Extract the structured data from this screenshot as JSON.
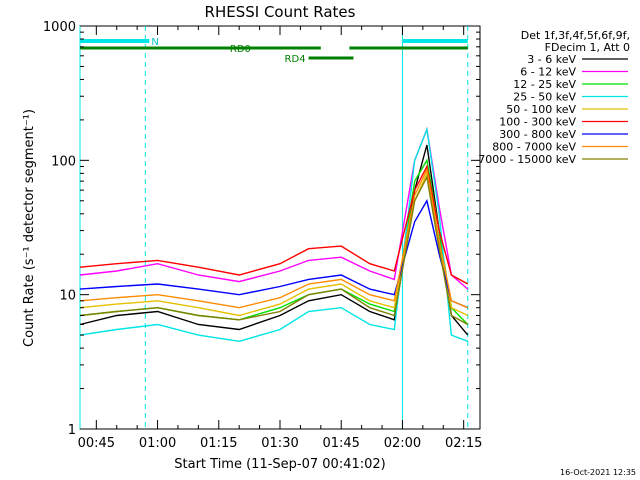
{
  "chart_data": {
    "type": "line",
    "title": "RHESSI Count Rates",
    "xlabel": "Start Time (11-Sep-07 00:41:02)",
    "ylabel": "Count Rate (s⁻¹ detector segment⁻¹)",
    "y_scale": "log",
    "ylim": [
      1,
      1000
    ],
    "y_ticks": [
      1,
      10,
      100,
      1000
    ],
    "y_tick_labels": [
      "1",
      "10",
      "100",
      "1000"
    ],
    "xlim": [
      "00:41",
      "02:19"
    ],
    "x_ticks": [
      "00:45",
      "01:00",
      "01:15",
      "01:30",
      "01:45",
      "02:00",
      "02:15"
    ],
    "grid": false,
    "legend_position": "right",
    "legend_header": [
      "Det 1f,3f,4f,5f,6f,9f,",
      "FDecim 1, Att 0"
    ],
    "footer_date": "16-Oct-2021 12:35",
    "markers": {
      "solid_vertical_lines_at": [
        "00:41",
        "02:00"
      ],
      "dashed_vertical_lines_at": [
        "00:57",
        "02:16"
      ],
      "night_bars": [
        {
          "label": "N",
          "start": "00:41",
          "end": "00:58"
        },
        {
          "label": "",
          "start": "02:00",
          "end": "02:16"
        }
      ],
      "decimation_bars": [
        {
          "label": "RD0",
          "start": "00:41",
          "end": "01:40"
        },
        {
          "label": "",
          "start": "01:47",
          "end": "02:16"
        },
        {
          "label": "RD4",
          "start": "01:37",
          "end": "01:48"
        }
      ]
    },
    "series": [
      {
        "name": "3 - 6 keV",
        "color": "#000000",
        "x": [
          "00:41",
          "00:50",
          "01:00",
          "01:10",
          "01:20",
          "01:30",
          "01:37",
          "01:45",
          "01:52",
          "01:58",
          "02:03",
          "02:06",
          "02:09",
          "02:12",
          "02:16"
        ],
        "values": [
          6,
          7,
          7.5,
          6,
          5.5,
          7,
          9,
          10,
          7.5,
          6.5,
          60,
          130,
          30,
          7,
          5
        ]
      },
      {
        "name": "6 - 12 keV",
        "color": "#ff00ff",
        "x": [
          "00:41",
          "00:50",
          "01:00",
          "01:10",
          "01:20",
          "01:30",
          "01:37",
          "01:45",
          "01:52",
          "01:58",
          "02:03",
          "02:06",
          "02:09",
          "02:12",
          "02:16"
        ],
        "values": [
          14,
          15,
          17,
          14,
          12.5,
          15,
          18,
          19,
          15,
          13,
          100,
          170,
          45,
          14,
          11
        ]
      },
      {
        "name": "12 - 25 keV",
        "color": "#00e000",
        "x": [
          "00:41",
          "00:50",
          "01:00",
          "01:10",
          "01:20",
          "01:30",
          "01:37",
          "01:45",
          "01:52",
          "01:58",
          "02:03",
          "02:06",
          "02:09",
          "02:12",
          "02:16"
        ],
        "values": [
          7,
          7.5,
          8,
          7,
          6.5,
          8,
          10,
          11,
          8.5,
          7.5,
          70,
          100,
          30,
          8,
          6
        ]
      },
      {
        "name": "25 - 50 keV",
        "color": "#00e5e5",
        "x": [
          "00:41",
          "00:50",
          "01:00",
          "01:10",
          "01:20",
          "01:30",
          "01:37",
          "01:45",
          "01:52",
          "01:58",
          "02:03",
          "02:06",
          "02:09",
          "02:12",
          "02:16"
        ],
        "values": [
          5,
          5.5,
          6,
          5,
          4.5,
          5.5,
          7.5,
          8,
          6,
          5.5,
          100,
          170,
          40,
          5,
          4.5
        ]
      },
      {
        "name": "50 - 100 keV",
        "color": "#e5c000",
        "x": [
          "00:41",
          "00:50",
          "01:00",
          "01:10",
          "01:20",
          "01:30",
          "01:37",
          "01:45",
          "01:52",
          "01:58",
          "02:03",
          "02:06",
          "02:09",
          "02:12",
          "02:16"
        ],
        "values": [
          8,
          8.5,
          9,
          8,
          7,
          8.5,
          11,
          12,
          9,
          8,
          50,
          80,
          25,
          8,
          7
        ]
      },
      {
        "name": "100 - 300 keV",
        "color": "#ff0000",
        "x": [
          "00:41",
          "00:50",
          "01:00",
          "01:10",
          "01:20",
          "01:30",
          "01:37",
          "01:45",
          "01:52",
          "01:58",
          "02:03",
          "02:06",
          "02:09",
          "02:12",
          "02:16"
        ],
        "values": [
          16,
          17,
          18,
          16,
          14,
          17,
          22,
          23,
          17,
          15,
          60,
          90,
          30,
          14,
          12
        ]
      },
      {
        "name": "300 - 800 keV",
        "color": "#0000ff",
        "x": [
          "00:41",
          "00:50",
          "01:00",
          "01:10",
          "01:20",
          "01:30",
          "01:37",
          "01:45",
          "01:52",
          "01:58",
          "02:03",
          "02:06",
          "02:09",
          "02:12",
          "02:16"
        ],
        "values": [
          11,
          11.5,
          12,
          11,
          10,
          11.5,
          13,
          14,
          11,
          10,
          35,
          50,
          20,
          9,
          8
        ]
      },
      {
        "name": "800 - 7000 keV",
        "color": "#ff8c00",
        "x": [
          "00:41",
          "00:50",
          "01:00",
          "01:10",
          "01:20",
          "01:30",
          "01:37",
          "01:45",
          "01:52",
          "01:58",
          "02:03",
          "02:06",
          "02:09",
          "02:12",
          "02:16"
        ],
        "values": [
          9,
          9.5,
          10,
          9,
          8,
          9.5,
          12,
          13,
          10,
          9,
          55,
          85,
          25,
          9,
          8
        ]
      },
      {
        "name": "7000 - 15000 keV",
        "color": "#808000",
        "x": [
          "00:41",
          "00:50",
          "01:00",
          "01:10",
          "01:20",
          "01:30",
          "01:37",
          "01:45",
          "01:52",
          "01:58",
          "02:03",
          "02:06",
          "02:09",
          "02:12",
          "02:16"
        ],
        "values": [
          7,
          7.5,
          8,
          7,
          6.5,
          7.5,
          10,
          11,
          8,
          7,
          50,
          75,
          22,
          7,
          6
        ]
      }
    ]
  }
}
